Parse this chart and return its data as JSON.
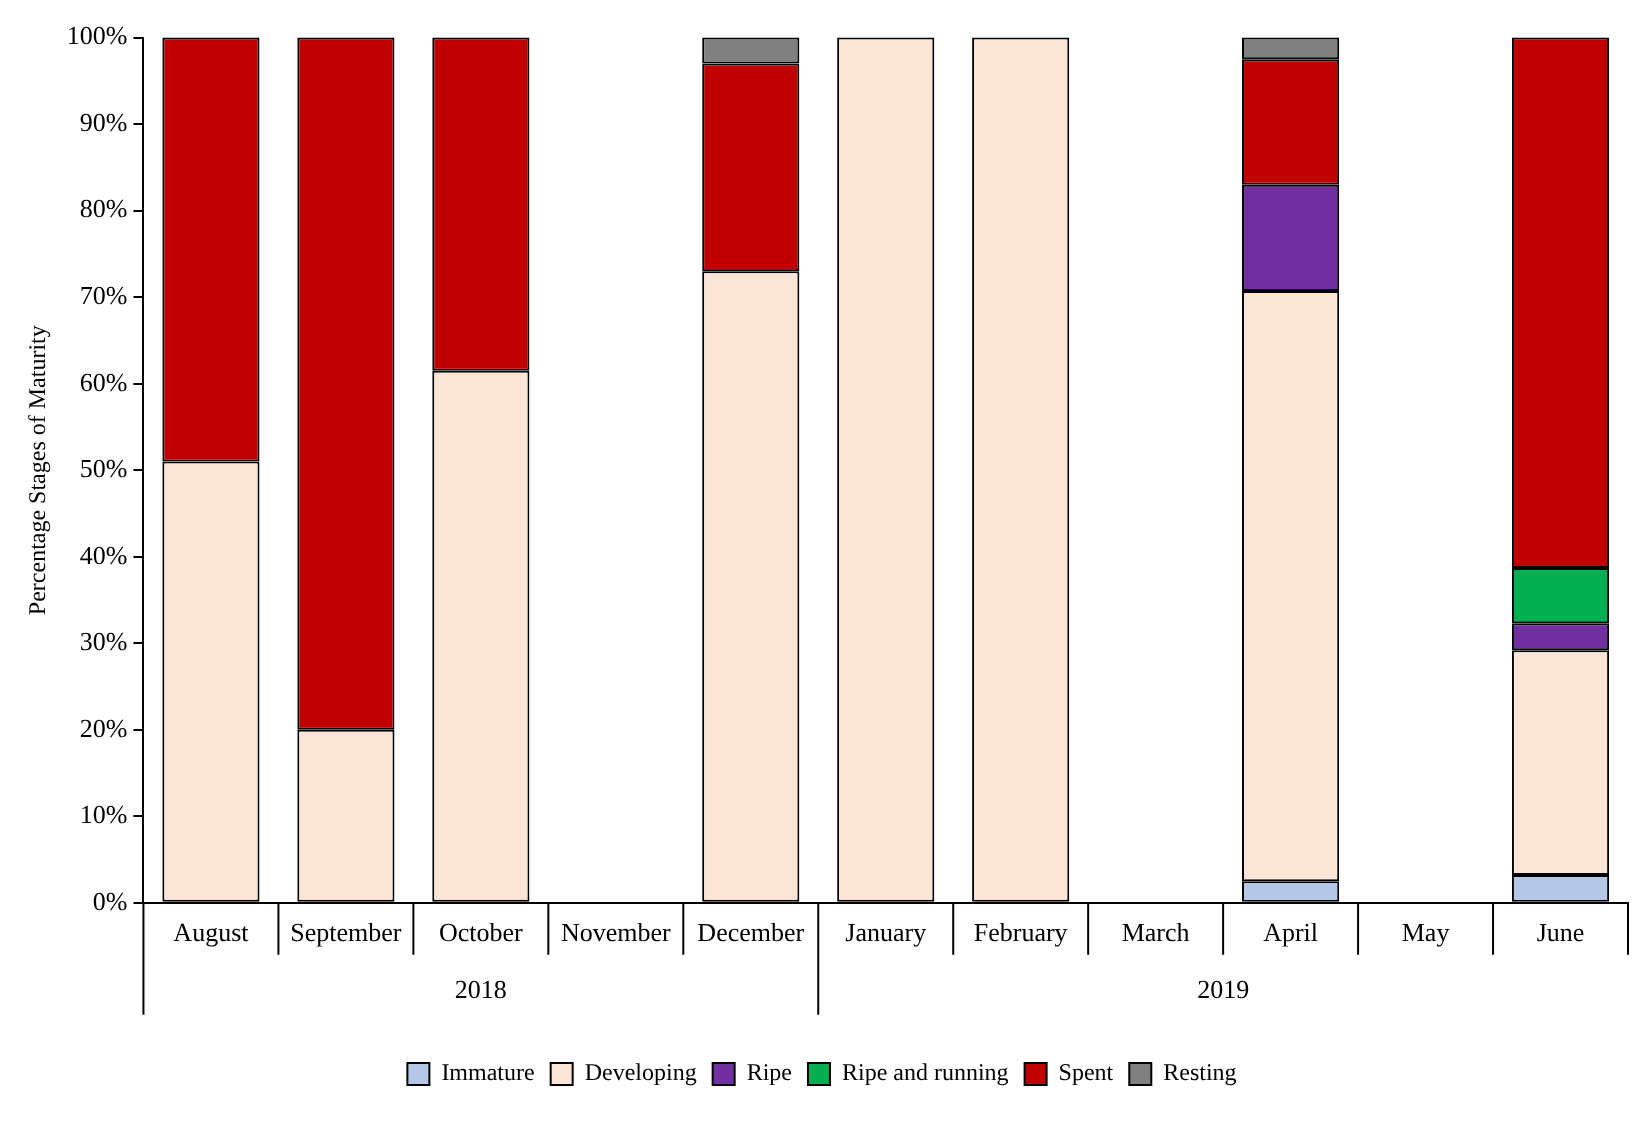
{
  "chart_data": {
    "type": "bar",
    "stacked": true,
    "ylabel": "Percentage Stages of Maturity",
    "categories": [
      "August",
      "September",
      "October",
      "November",
      "December",
      "January",
      "February",
      "March",
      "April",
      "May",
      "June"
    ],
    "series": [
      {
        "name": "Immature",
        "color": "#b4c7e7",
        "values": [
          0,
          0,
          0,
          null,
          0,
          0,
          0,
          null,
          2.5,
          null,
          3.2
        ]
      },
      {
        "name": "Developing",
        "color": "#fbe5d6",
        "values": [
          51,
          20,
          61.5,
          null,
          73,
          100,
          100,
          null,
          68.2,
          null,
          26
        ]
      },
      {
        "name": "Ripe",
        "color": "#7030a0",
        "values": [
          0,
          0,
          0,
          null,
          0,
          0,
          0,
          null,
          12.3,
          null,
          3.1
        ]
      },
      {
        "name": "Ripe and running",
        "color": "#00b050",
        "values": [
          0,
          0,
          0,
          null,
          0,
          0,
          0,
          null,
          0,
          null,
          6.4
        ]
      },
      {
        "name": "Spent",
        "color": "#c00000",
        "values": [
          49,
          80,
          38.5,
          null,
          24,
          0,
          0,
          null,
          14.5,
          null,
          61.3
        ]
      },
      {
        "name": "Resting",
        "color": "#808080",
        "values": [
          0,
          0,
          0,
          null,
          3,
          0,
          0,
          null,
          2.5,
          null,
          0
        ]
      }
    ],
    "ylim": [
      0,
      100
    ],
    "yticks": [
      {
        "value": 0,
        "label": "0%"
      },
      {
        "value": 10,
        "label": "10%"
      },
      {
        "value": 20,
        "label": "20%"
      },
      {
        "value": 30,
        "label": "30%"
      },
      {
        "value": 40,
        "label": "40%"
      },
      {
        "value": 50,
        "label": "50%"
      },
      {
        "value": 60,
        "label": "60%"
      },
      {
        "value": 70,
        "label": "70%"
      },
      {
        "value": 80,
        "label": "80%"
      },
      {
        "value": 90,
        "label": "90%"
      },
      {
        "value": 100,
        "label": "100%"
      }
    ],
    "grid": false,
    "legend": "bottom",
    "annotations": [
      "2018",
      "2019"
    ]
  }
}
